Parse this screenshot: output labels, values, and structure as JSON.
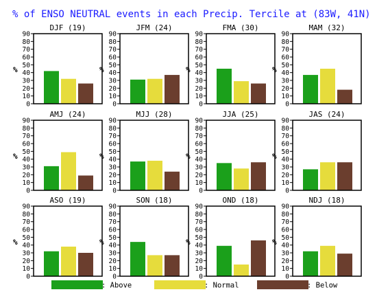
{
  "title": "% of ENSO NEUTRAL events in each Precip. Tercile at (83W, 41N)",
  "ylabel": "%",
  "yticks": [
    0,
    10,
    20,
    30,
    40,
    50,
    60,
    70,
    80,
    90
  ],
  "colors": {
    "Above": "#1ba01b",
    "Normal": "#e6dc3c",
    "Below": "#6b3e2e",
    "title": "#1a1aff"
  },
  "legend": [
    {
      "name": "Above",
      "label": ": Above"
    },
    {
      "name": "Normal",
      "label": ": Normal"
    },
    {
      "name": "Below",
      "label": ": Below"
    }
  ],
  "chart_data": [
    {
      "type": "bar",
      "title": "DJF (19)",
      "categories": [
        "Above",
        "Normal",
        "Below"
      ],
      "values": [
        42,
        32,
        26
      ],
      "ylim": [
        0,
        90
      ],
      "ylabel": "%"
    },
    {
      "type": "bar",
      "title": "JFM (24)",
      "categories": [
        "Above",
        "Normal",
        "Below"
      ],
      "values": [
        31,
        32,
        37
      ],
      "ylim": [
        0,
        90
      ],
      "ylabel": "%"
    },
    {
      "type": "bar",
      "title": "FMA (30)",
      "categories": [
        "Above",
        "Normal",
        "Below"
      ],
      "values": [
        45,
        29,
        26
      ],
      "ylim": [
        0,
        90
      ],
      "ylabel": "%"
    },
    {
      "type": "bar",
      "title": "MAM (32)",
      "categories": [
        "Above",
        "Normal",
        "Below"
      ],
      "values": [
        37,
        45,
        18
      ],
      "ylim": [
        0,
        90
      ],
      "ylabel": "%"
    },
    {
      "type": "bar",
      "title": "AMJ (24)",
      "categories": [
        "Above",
        "Normal",
        "Below"
      ],
      "values": [
        31,
        49,
        19
      ],
      "ylim": [
        0,
        90
      ],
      "ylabel": "%"
    },
    {
      "type": "bar",
      "title": "MJJ (28)",
      "categories": [
        "Above",
        "Normal",
        "Below"
      ],
      "values": [
        37,
        38,
        24
      ],
      "ylim": [
        0,
        90
      ],
      "ylabel": "%"
    },
    {
      "type": "bar",
      "title": "JJA (25)",
      "categories": [
        "Above",
        "Normal",
        "Below"
      ],
      "values": [
        35,
        28,
        36
      ],
      "ylim": [
        0,
        90
      ],
      "ylabel": "%"
    },
    {
      "type": "bar",
      "title": "JAS (24)",
      "categories": [
        "Above",
        "Normal",
        "Below"
      ],
      "values": [
        27,
        36,
        36
      ],
      "ylim": [
        0,
        90
      ],
      "ylabel": "%"
    },
    {
      "type": "bar",
      "title": "ASO (19)",
      "categories": [
        "Above",
        "Normal",
        "Below"
      ],
      "values": [
        32,
        38,
        30
      ],
      "ylim": [
        0,
        90
      ],
      "ylabel": "%"
    },
    {
      "type": "bar",
      "title": "SON (18)",
      "categories": [
        "Above",
        "Normal",
        "Below"
      ],
      "values": [
        44,
        27,
        27
      ],
      "ylim": [
        0,
        90
      ],
      "ylabel": "%"
    },
    {
      "type": "bar",
      "title": "OND (18)",
      "categories": [
        "Above",
        "Normal",
        "Below"
      ],
      "values": [
        39,
        15,
        46
      ],
      "ylim": [
        0,
        90
      ],
      "ylabel": "%"
    },
    {
      "type": "bar",
      "title": "NDJ (18)",
      "categories": [
        "Above",
        "Normal",
        "Below"
      ],
      "values": [
        32,
        39,
        29
      ],
      "ylim": [
        0,
        90
      ],
      "ylabel": "%"
    }
  ]
}
